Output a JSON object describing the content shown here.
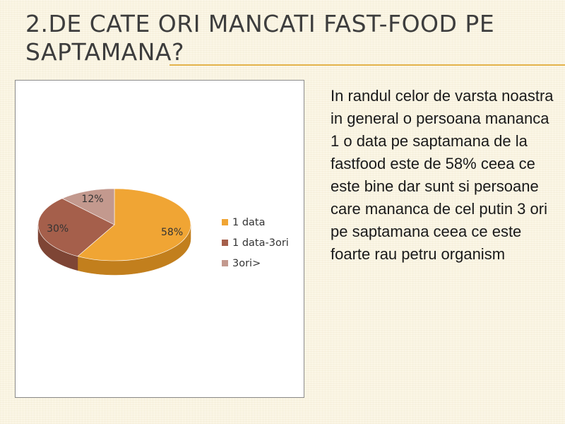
{
  "slide": {
    "title": "2.DE CATE ORI MANCATI FAST-FOOD PE SAPTAMANA?",
    "body_text": "In randul celor de varsta noastra in general o persoana mananca 1 o data pe saptamana de la fastfood este de 58% ceea ce este bine dar sunt si persoane care mananca de cel putin 3 ori pe saptamana ceea ce este foarte rau petru organism",
    "colors": {
      "accent": "#e3b24a",
      "title": "#3d3d3d",
      "background": "#fbf6e6"
    }
  },
  "chart_data": {
    "type": "pie",
    "style": "3d",
    "categories": [
      "1 data",
      "1 data-3ori",
      "3ori>"
    ],
    "values": [
      58,
      30,
      12
    ],
    "data_labels": [
      "58%",
      "30%",
      "12%"
    ],
    "colors": [
      "#f0a534",
      "#a55f4b",
      "#c3998e"
    ],
    "side_colors": [
      "#c27f1d",
      "#7e4535",
      "#96706a"
    ],
    "legend": {
      "entries": [
        "1 data",
        "1 data-3ori",
        "3ori>"
      ],
      "position": "right"
    }
  }
}
